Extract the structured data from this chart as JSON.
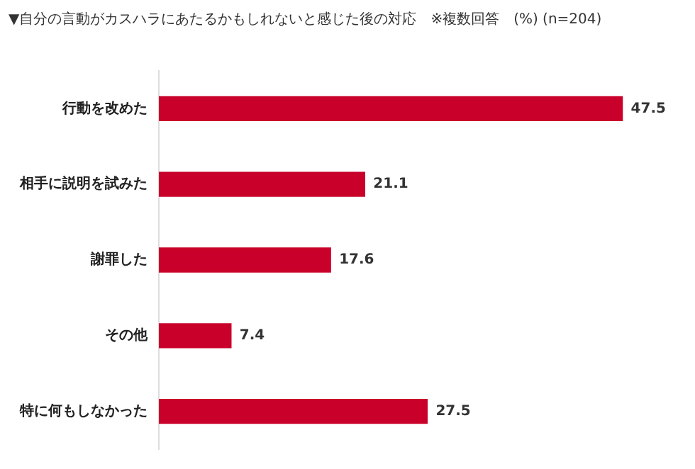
{
  "chart_data": {
    "type": "bar",
    "orientation": "horizontal",
    "title": "▼自分の言動がカスハラにあたるかもしれないと感じた後の対応　※複数回答　(%) (n=204)",
    "categories": [
      "行動を改めた",
      "相手に説明を試みた",
      "謝罪した",
      "その他",
      "特に何もしなかった"
    ],
    "values": [
      47.5,
      21.1,
      17.6,
      7.4,
      27.5
    ],
    "color": "#c8002a",
    "tick_labels": "y",
    "data_labels": true,
    "grid": false,
    "legend": false
  }
}
